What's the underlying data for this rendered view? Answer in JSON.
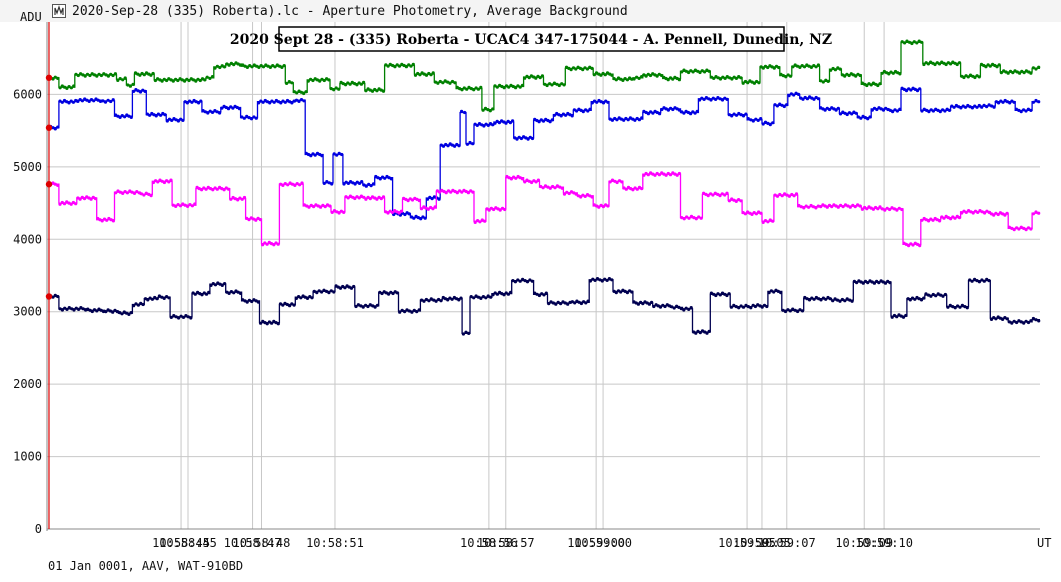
{
  "window": {
    "title": "2020-Sep-28 (335) Roberta).lc - Aperture Photometry, Average Background",
    "icon": "lightcurve-app-icon"
  },
  "footer": {
    "info": "01 Jan 0001, AAV, WAT-910BD"
  },
  "chart_data": {
    "type": "line",
    "title": "2020 Sept 28 - (335) Roberta - UCAC4 347-175044 - A. Pennell, Dunedin, NZ",
    "ylabel": "ADU",
    "xlabel": "UT",
    "ylim": [
      0,
      7000
    ],
    "xlim": [
      0,
      1000
    ],
    "yticks": [
      0,
      1000,
      2000,
      3000,
      4000,
      5000,
      6000
    ],
    "xtick_labels": [
      {
        "x": 135,
        "label": "10:58:45"
      },
      {
        "x": 142,
        "label": "10:58:45"
      },
      {
        "x": 207,
        "label": "10:58:47"
      },
      {
        "x": 216,
        "label": "10:58:48"
      },
      {
        "x": 290,
        "label": "10:58:51"
      },
      {
        "x": 445,
        "label": "10:58:56"
      },
      {
        "x": 462,
        "label": "10:58:57"
      },
      {
        "x": 553,
        "label": "10:59:00"
      },
      {
        "x": 560,
        "label": "10:59:00"
      },
      {
        "x": 705,
        "label": "10:59:05"
      },
      {
        "x": 720,
        "label": "10:59:05"
      },
      {
        "x": 745,
        "label": "10:59:07"
      },
      {
        "x": 823,
        "label": "10:59:09"
      },
      {
        "x": 843,
        "label": "10:59:10"
      }
    ],
    "grid": true,
    "marker_x": 2,
    "series": [
      {
        "color": "#008000",
        "steps": [
          [
            0,
            6230
          ],
          [
            12,
            6100
          ],
          [
            28,
            6270
          ],
          [
            70,
            6210
          ],
          [
            80,
            6130
          ],
          [
            88,
            6280
          ],
          [
            108,
            6200
          ],
          [
            160,
            6230
          ],
          [
            168,
            6380
          ],
          [
            180,
            6420
          ],
          [
            196,
            6390
          ],
          [
            240,
            6160
          ],
          [
            248,
            6030
          ],
          [
            262,
            6200
          ],
          [
            285,
            6080
          ],
          [
            295,
            6150
          ],
          [
            320,
            6060
          ],
          [
            340,
            6400
          ],
          [
            370,
            6280
          ],
          [
            390,
            6170
          ],
          [
            412,
            6080
          ],
          [
            438,
            5790
          ],
          [
            450,
            6110
          ],
          [
            480,
            6240
          ],
          [
            500,
            6140
          ],
          [
            522,
            6360
          ],
          [
            550,
            6280
          ],
          [
            570,
            6210
          ],
          [
            590,
            6230
          ],
          [
            600,
            6270
          ],
          [
            620,
            6220
          ],
          [
            638,
            6320
          ],
          [
            668,
            6230
          ],
          [
            700,
            6170
          ],
          [
            718,
            6380
          ],
          [
            738,
            6260
          ],
          [
            750,
            6390
          ],
          [
            778,
            6180
          ],
          [
            788,
            6350
          ],
          [
            800,
            6270
          ],
          [
            820,
            6140
          ],
          [
            840,
            6300
          ],
          [
            860,
            6720
          ],
          [
            882,
            6430
          ],
          [
            920,
            6250
          ],
          [
            940,
            6400
          ],
          [
            960,
            6310
          ],
          [
            992,
            6360
          ]
        ]
      },
      {
        "color": "#0000e0",
        "steps": [
          [
            0,
            5540
          ],
          [
            12,
            5900
          ],
          [
            30,
            5920
          ],
          [
            55,
            5910
          ],
          [
            68,
            5700
          ],
          [
            86,
            6050
          ],
          [
            100,
            5720
          ],
          [
            120,
            5650
          ],
          [
            138,
            5900
          ],
          [
            156,
            5760
          ],
          [
            175,
            5820
          ],
          [
            195,
            5680
          ],
          [
            212,
            5900
          ],
          [
            250,
            5920
          ],
          [
            260,
            5170
          ],
          [
            278,
            4780
          ],
          [
            288,
            5170
          ],
          [
            298,
            4780
          ],
          [
            318,
            4750
          ],
          [
            330,
            4850
          ],
          [
            348,
            4350
          ],
          [
            366,
            4300
          ],
          [
            382,
            4570
          ],
          [
            396,
            5300
          ],
          [
            416,
            5750
          ],
          [
            422,
            5320
          ],
          [
            430,
            5580
          ],
          [
            450,
            5620
          ],
          [
            470,
            5400
          ],
          [
            490,
            5640
          ],
          [
            510,
            5720
          ],
          [
            530,
            5780
          ],
          [
            548,
            5900
          ],
          [
            566,
            5660
          ],
          [
            600,
            5750
          ],
          [
            618,
            5800
          ],
          [
            638,
            5750
          ],
          [
            656,
            5940
          ],
          [
            686,
            5720
          ],
          [
            705,
            5650
          ],
          [
            720,
            5600
          ],
          [
            732,
            5850
          ],
          [
            746,
            6000
          ],
          [
            758,
            5950
          ],
          [
            778,
            5800
          ],
          [
            798,
            5740
          ],
          [
            816,
            5680
          ],
          [
            830,
            5800
          ],
          [
            848,
            5780
          ],
          [
            860,
            6070
          ],
          [
            880,
            5780
          ],
          [
            910,
            5830
          ],
          [
            940,
            5840
          ],
          [
            955,
            5900
          ],
          [
            975,
            5780
          ],
          [
            992,
            5900
          ]
        ]
      },
      {
        "color": "#ff00ff",
        "steps": [
          [
            0,
            4760
          ],
          [
            12,
            4500
          ],
          [
            30,
            4570
          ],
          [
            50,
            4270
          ],
          [
            68,
            4650
          ],
          [
            94,
            4620
          ],
          [
            106,
            4800
          ],
          [
            126,
            4470
          ],
          [
            150,
            4700
          ],
          [
            184,
            4560
          ],
          [
            200,
            4280
          ],
          [
            216,
            3940
          ],
          [
            234,
            4760
          ],
          [
            258,
            4460
          ],
          [
            286,
            4380
          ],
          [
            300,
            4580
          ],
          [
            320,
            4570
          ],
          [
            340,
            4380
          ],
          [
            358,
            4550
          ],
          [
            376,
            4430
          ],
          [
            392,
            4660
          ],
          [
            430,
            4250
          ],
          [
            442,
            4420
          ],
          [
            462,
            4850
          ],
          [
            480,
            4800
          ],
          [
            496,
            4720
          ],
          [
            520,
            4640
          ],
          [
            534,
            4600
          ],
          [
            550,
            4460
          ],
          [
            566,
            4800
          ],
          [
            580,
            4700
          ],
          [
            600,
            4900
          ],
          [
            638,
            4300
          ],
          [
            660,
            4620
          ],
          [
            686,
            4540
          ],
          [
            700,
            4360
          ],
          [
            720,
            4250
          ],
          [
            732,
            4610
          ],
          [
            756,
            4450
          ],
          [
            778,
            4460
          ],
          [
            798,
            4460
          ],
          [
            820,
            4430
          ],
          [
            840,
            4420
          ],
          [
            862,
            3930
          ],
          [
            880,
            4270
          ],
          [
            900,
            4300
          ],
          [
            920,
            4380
          ],
          [
            950,
            4350
          ],
          [
            968,
            4150
          ],
          [
            992,
            4360
          ]
        ]
      },
      {
        "color": "#000050",
        "steps": [
          [
            0,
            3210
          ],
          [
            12,
            3040
          ],
          [
            40,
            3020
          ],
          [
            58,
            3010
          ],
          [
            72,
            2980
          ],
          [
            86,
            3100
          ],
          [
            98,
            3180
          ],
          [
            112,
            3200
          ],
          [
            124,
            2930
          ],
          [
            146,
            3250
          ],
          [
            164,
            3380
          ],
          [
            180,
            3270
          ],
          [
            196,
            3150
          ],
          [
            214,
            2850
          ],
          [
            234,
            3100
          ],
          [
            250,
            3200
          ],
          [
            268,
            3280
          ],
          [
            290,
            3340
          ],
          [
            310,
            3080
          ],
          [
            334,
            3260
          ],
          [
            354,
            3010
          ],
          [
            376,
            3160
          ],
          [
            398,
            3180
          ],
          [
            418,
            2700
          ],
          [
            426,
            3200
          ],
          [
            448,
            3250
          ],
          [
            468,
            3430
          ],
          [
            490,
            3240
          ],
          [
            504,
            3120
          ],
          [
            528,
            3130
          ],
          [
            546,
            3440
          ],
          [
            570,
            3280
          ],
          [
            590,
            3120
          ],
          [
            610,
            3080
          ],
          [
            628,
            3060
          ],
          [
            640,
            3040
          ],
          [
            650,
            2720
          ],
          [
            668,
            3240
          ],
          [
            688,
            3070
          ],
          [
            710,
            3080
          ],
          [
            726,
            3280
          ],
          [
            740,
            3020
          ],
          [
            762,
            3180
          ],
          [
            790,
            3160
          ],
          [
            812,
            3410
          ],
          [
            850,
            2940
          ],
          [
            866,
            3180
          ],
          [
            884,
            3230
          ],
          [
            906,
            3070
          ],
          [
            928,
            3430
          ],
          [
            950,
            2910
          ],
          [
            968,
            2860
          ],
          [
            992,
            2890
          ]
        ]
      }
    ]
  }
}
